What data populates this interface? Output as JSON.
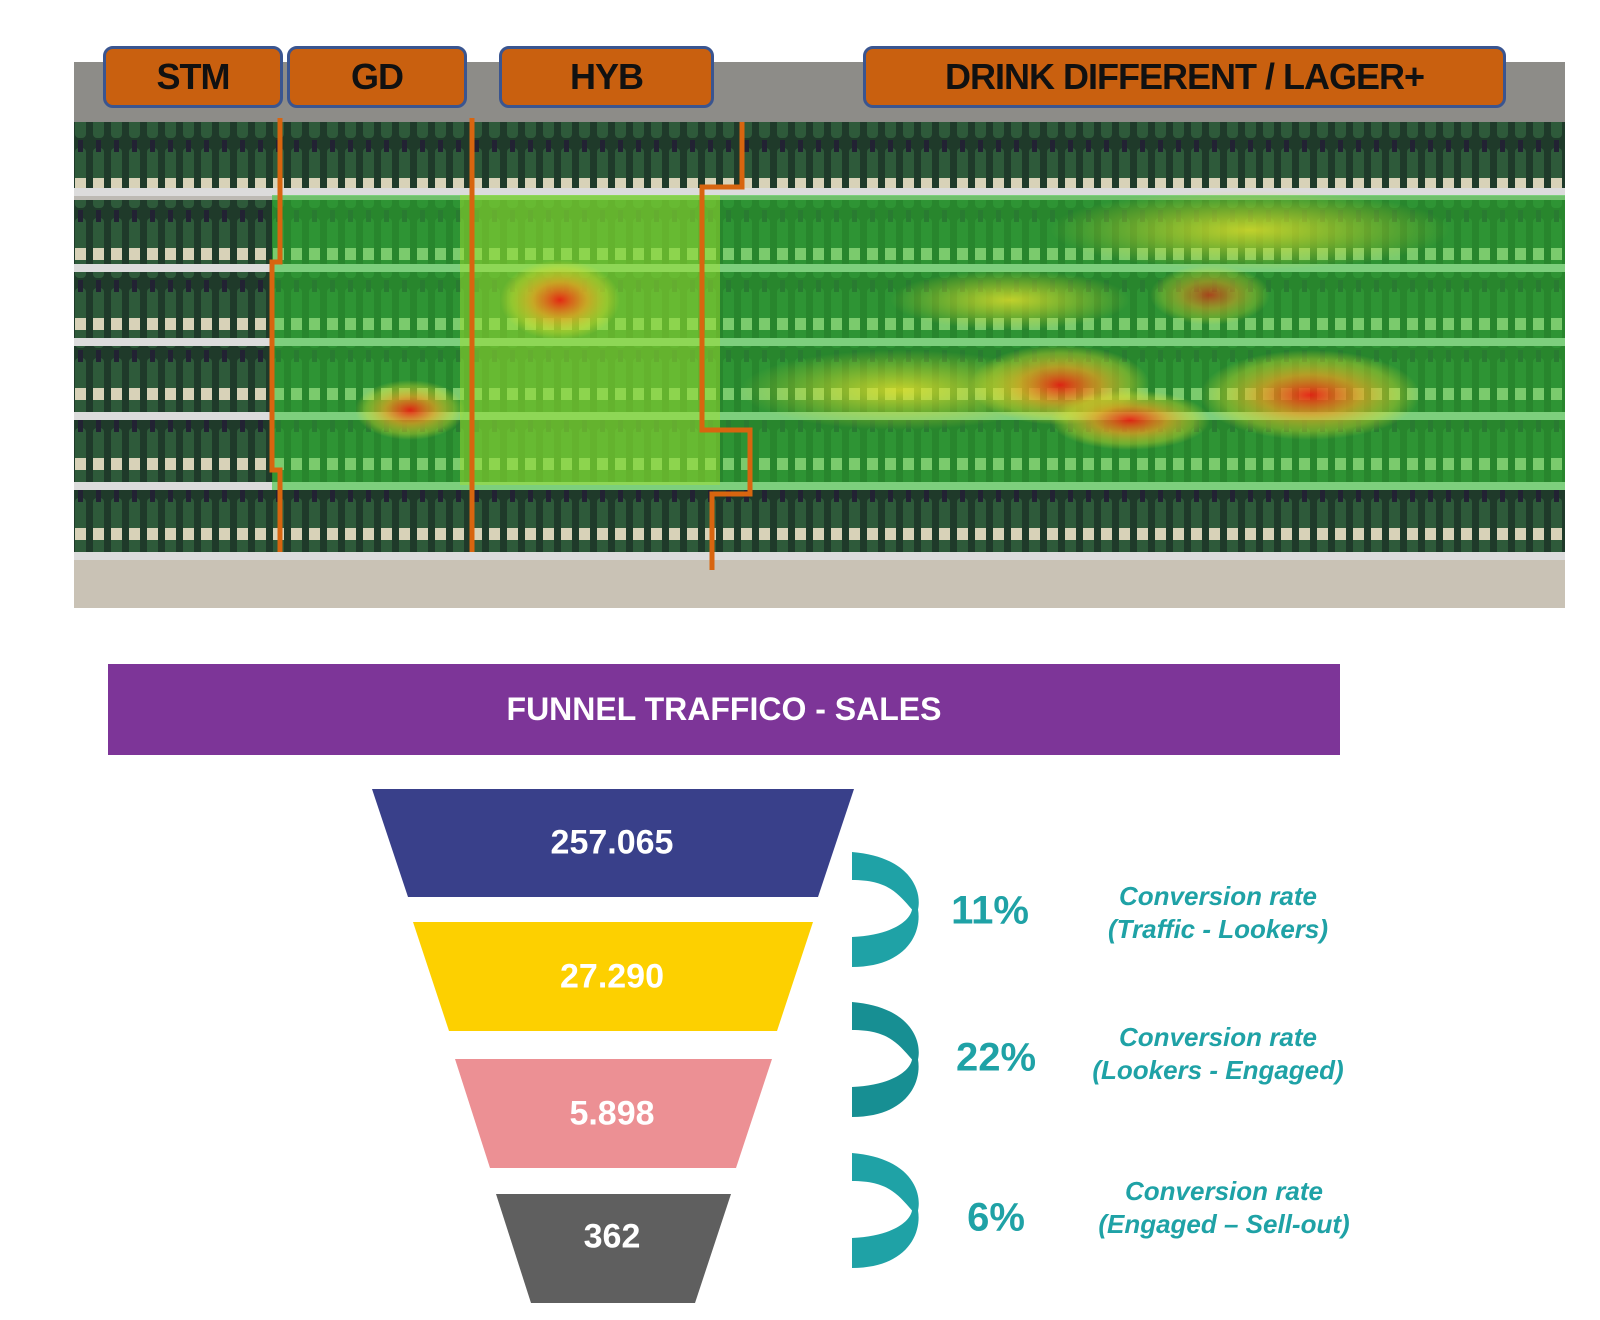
{
  "shelf": {
    "segments": [
      {
        "label": "STM"
      },
      {
        "label": "GD"
      },
      {
        "label": "HYB"
      },
      {
        "label": "DRINK DIFFERENT / LAGER+"
      }
    ],
    "label_color": "#c9600f",
    "heatmap_colors": [
      "#2fc42f",
      "#e5e02a",
      "#f01a10"
    ]
  },
  "funnel": {
    "title": "FUNNEL TRAFFICO - SALES",
    "title_bg": "#7d3598",
    "stages": [
      {
        "value": "257.065",
        "color": "#39408a"
      },
      {
        "value": "27.290",
        "color": "#fdd000"
      },
      {
        "value": "5.898",
        "color": "#ec9094"
      },
      {
        "value": "362",
        "color": "#5f5f5f"
      }
    ],
    "conversions": [
      {
        "rate": "11%",
        "line1": "Conversion  rate",
        "line2": "(Traffic - Lookers)"
      },
      {
        "rate": "22%",
        "line1": "Conversion  rate",
        "line2": "(Lookers - Engaged)"
      },
      {
        "rate": "6%",
        "line1": "Conversion  rate",
        "line2": "(Engaged – Sell-out)"
      }
    ],
    "accent": "#1fa2a6"
  }
}
